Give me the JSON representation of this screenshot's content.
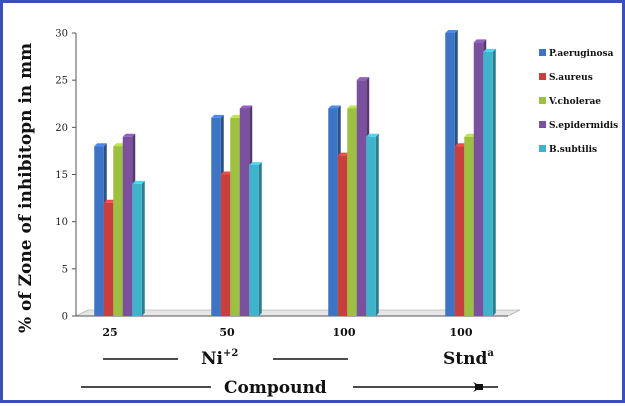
{
  "chart_data": {
    "type": "bar",
    "ylabel": "% of Zone of inhibitopn in mm",
    "ylim": [
      0,
      30
    ],
    "yticks": [
      0,
      5,
      10,
      15,
      20,
      25,
      30
    ],
    "categories": [
      "25",
      "50",
      "100",
      "100"
    ],
    "series": [
      {
        "name": "P.aeruginosa",
        "values": [
          18,
          21,
          22,
          30
        ],
        "color": "#3d74c4"
      },
      {
        "name": "S.aureus",
        "values": [
          12,
          15,
          17,
          18
        ],
        "color": "#c8403e"
      },
      {
        "name": "V.cholerae",
        "values": [
          18,
          21,
          22,
          19
        ],
        "color": "#9dc043"
      },
      {
        "name": "S.epidermidis",
        "values": [
          19,
          22,
          25,
          29
        ],
        "color": "#7b509e"
      },
      {
        "name": "B.subtilis",
        "values": [
          14,
          16,
          19,
          28
        ],
        "color": "#3fb2cc"
      }
    ],
    "legend_position": "right",
    "grid": false,
    "group_labels": [
      {
        "text": "Ni",
        "sup": "+2"
      },
      {
        "text": "Stnd",
        "sup": "a"
      }
    ],
    "footer_label": "Compound"
  }
}
